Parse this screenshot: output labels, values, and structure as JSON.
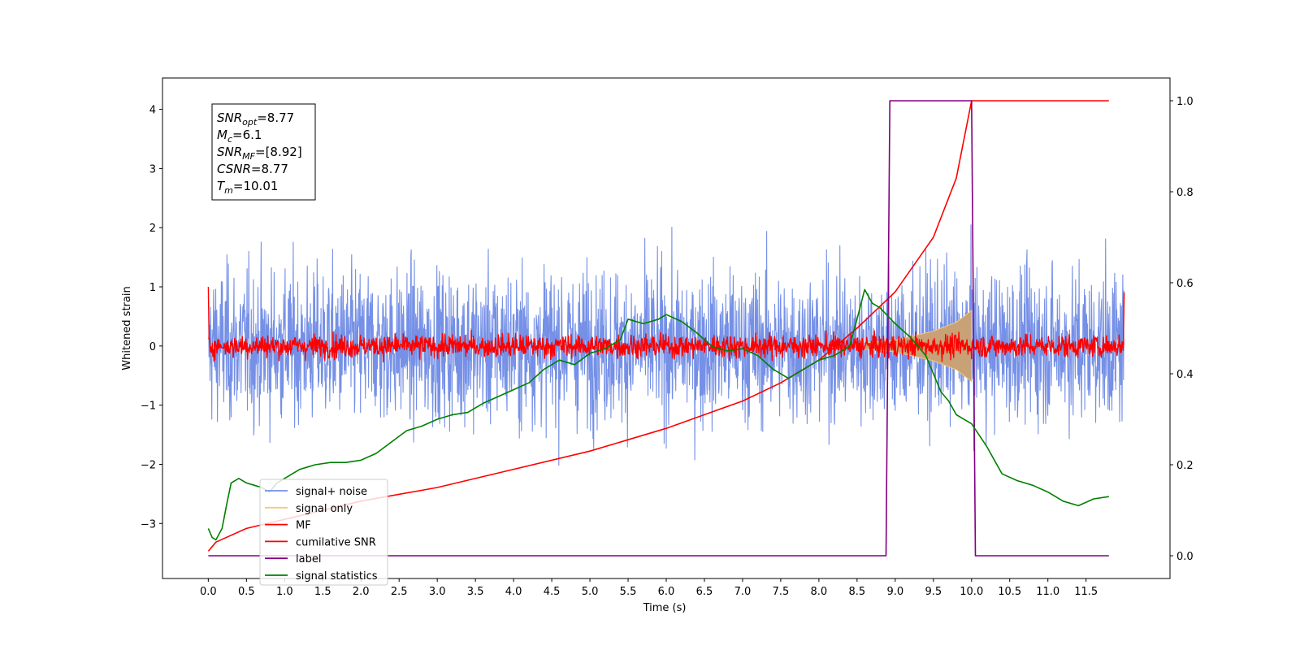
{
  "chart_data": {
    "type": "line",
    "xlabel": "Time (s)",
    "ylabel": "Whitened strain",
    "xlim": [
      -0.6,
      12.6
    ],
    "ylim_left": [
      -3.93,
      4.53
    ],
    "ylim_right": [
      -0.05,
      1.05
    ],
    "x_ticks": [
      0.0,
      0.5,
      1.0,
      1.5,
      2.0,
      2.5,
      3.0,
      3.5,
      4.0,
      4.5,
      5.0,
      5.5,
      6.0,
      6.5,
      7.0,
      7.5,
      8.0,
      8.5,
      9.0,
      9.5,
      10.0,
      10.5,
      11.0,
      11.5
    ],
    "x_tick_labels": [
      "0.0",
      "0.5",
      "1.0",
      "1.5",
      "2.0",
      "2.5",
      "3.0",
      "3.5",
      "4.0",
      "4.5",
      "5.0",
      "5.5",
      "6.0",
      "6.5",
      "7.0",
      "7.5",
      "8.0",
      "8.5",
      "9.0",
      "9.5",
      "10.0",
      "10.5",
      "11.0",
      "11.5"
    ],
    "y_ticks_left": [
      -3,
      -2,
      -1,
      0,
      1,
      2,
      3,
      4
    ],
    "y_tick_labels_left": [
      "−3",
      "−2",
      "−1",
      "0",
      "1",
      "2",
      "3",
      "4"
    ],
    "y_ticks_right": [
      0.0,
      0.2,
      0.4,
      0.6,
      0.8,
      1.0
    ],
    "y_tick_labels_right": [
      "0.0",
      "0.2",
      "0.4",
      "0.6",
      "0.8",
      "1.0"
    ],
    "legend_placement": "lower-left",
    "series": [
      {
        "name": "signal+ noise",
        "axis": "left",
        "color": "#7590e6",
        "description_kind": "noise-band",
        "x_range": [
          0.0,
          12.0
        ],
        "spread": 1.0,
        "points": [
          [
            0.0,
            0.0
          ],
          [
            12.0,
            0.0
          ]
        ]
      },
      {
        "name": "signal only",
        "axis": "left",
        "color": "#f5c87a",
        "fill_color": "#c8a176",
        "description_kind": "chirp-envelope",
        "x_range": [
          8.6,
          10.0
        ],
        "amplitude_start": 0.05,
        "amplitude_end": 0.6,
        "points": [
          [
            8.6,
            0.05
          ],
          [
            9.0,
            0.1
          ],
          [
            9.5,
            0.25
          ],
          [
            9.8,
            0.4
          ],
          [
            10.0,
            0.6
          ]
        ]
      },
      {
        "name": "MF",
        "axis": "left",
        "color": "#ff0000",
        "description_kind": "noise-band",
        "x_range": [
          0.0,
          12.0
        ],
        "spread": 0.15,
        "points": [
          [
            0.0,
            1.0
          ],
          [
            0.02,
            0.3
          ],
          [
            11.98,
            0.3
          ],
          [
            12.0,
            0.9
          ]
        ]
      },
      {
        "name": "cumilative SNR",
        "axis": "right",
        "color": "#ff0000",
        "points": [
          [
            0.0,
            0.01
          ],
          [
            0.1,
            0.03
          ],
          [
            0.5,
            0.06
          ],
          [
            1.0,
            0.08
          ],
          [
            2.0,
            0.12
          ],
          [
            3.0,
            0.15
          ],
          [
            4.0,
            0.19
          ],
          [
            5.0,
            0.23
          ],
          [
            6.0,
            0.28
          ],
          [
            7.0,
            0.34
          ],
          [
            7.5,
            0.38
          ],
          [
            8.0,
            0.43
          ],
          [
            8.5,
            0.5
          ],
          [
            9.0,
            0.58
          ],
          [
            9.5,
            0.7
          ],
          [
            9.8,
            0.83
          ],
          [
            10.0,
            1.0
          ],
          [
            11.8,
            1.0
          ]
        ]
      },
      {
        "name": "label",
        "axis": "right",
        "color": "#800080",
        "points": [
          [
            0.0,
            0.0
          ],
          [
            8.88,
            0.0
          ],
          [
            8.93,
            1.0
          ],
          [
            10.0,
            1.0
          ],
          [
            10.05,
            0.0
          ],
          [
            11.8,
            0.0
          ]
        ]
      },
      {
        "name": "signal statistics",
        "axis": "right",
        "color": "#008000",
        "points": [
          [
            0.0,
            0.06
          ],
          [
            0.05,
            0.04
          ],
          [
            0.1,
            0.035
          ],
          [
            0.18,
            0.06
          ],
          [
            0.25,
            0.12
          ],
          [
            0.3,
            0.16
          ],
          [
            0.4,
            0.17
          ],
          [
            0.5,
            0.16
          ],
          [
            0.6,
            0.155
          ],
          [
            0.7,
            0.15
          ],
          [
            0.8,
            0.14
          ],
          [
            0.9,
            0.16
          ],
          [
            1.0,
            0.17
          ],
          [
            1.1,
            0.18
          ],
          [
            1.2,
            0.19
          ],
          [
            1.4,
            0.2
          ],
          [
            1.6,
            0.205
          ],
          [
            1.8,
            0.205
          ],
          [
            2.0,
            0.21
          ],
          [
            2.2,
            0.225
          ],
          [
            2.4,
            0.25
          ],
          [
            2.6,
            0.275
          ],
          [
            2.8,
            0.285
          ],
          [
            3.0,
            0.3
          ],
          [
            3.2,
            0.31
          ],
          [
            3.4,
            0.315
          ],
          [
            3.6,
            0.335
          ],
          [
            3.8,
            0.35
          ],
          [
            4.0,
            0.365
          ],
          [
            4.2,
            0.38
          ],
          [
            4.4,
            0.41
          ],
          [
            4.6,
            0.43
          ],
          [
            4.8,
            0.42
          ],
          [
            5.0,
            0.445
          ],
          [
            5.2,
            0.455
          ],
          [
            5.4,
            0.475
          ],
          [
            5.5,
            0.52
          ],
          [
            5.7,
            0.51
          ],
          [
            5.9,
            0.52
          ],
          [
            6.0,
            0.53
          ],
          [
            6.2,
            0.515
          ],
          [
            6.4,
            0.49
          ],
          [
            6.6,
            0.46
          ],
          [
            6.8,
            0.45
          ],
          [
            7.0,
            0.455
          ],
          [
            7.2,
            0.44
          ],
          [
            7.4,
            0.41
          ],
          [
            7.6,
            0.39
          ],
          [
            7.8,
            0.41
          ],
          [
            8.0,
            0.43
          ],
          [
            8.2,
            0.44
          ],
          [
            8.4,
            0.46
          ],
          [
            8.5,
            0.52
          ],
          [
            8.6,
            0.585
          ],
          [
            8.7,
            0.555
          ],
          [
            8.8,
            0.545
          ],
          [
            9.0,
            0.51
          ],
          [
            9.2,
            0.48
          ],
          [
            9.4,
            0.44
          ],
          [
            9.6,
            0.36
          ],
          [
            9.7,
            0.34
          ],
          [
            9.8,
            0.31
          ],
          [
            10.0,
            0.29
          ],
          [
            10.2,
            0.24
          ],
          [
            10.4,
            0.18
          ],
          [
            10.6,
            0.165
          ],
          [
            10.8,
            0.155
          ],
          [
            11.0,
            0.14
          ],
          [
            11.2,
            0.12
          ],
          [
            11.4,
            0.11
          ],
          [
            11.6,
            0.125
          ],
          [
            11.8,
            0.13
          ]
        ]
      }
    ],
    "info_box": [
      {
        "key": "SNR",
        "sub": "opt",
        "value": "=8.77"
      },
      {
        "key": "M",
        "sub": "c",
        "value": "=6.1"
      },
      {
        "key": "SNR",
        "sub": "MF",
        "value": "=[8.92]"
      },
      {
        "key": "CSNR",
        "sub": "",
        "value": "=8.77"
      },
      {
        "key": "T",
        "sub": "m",
        "value": "=10.01"
      }
    ]
  }
}
